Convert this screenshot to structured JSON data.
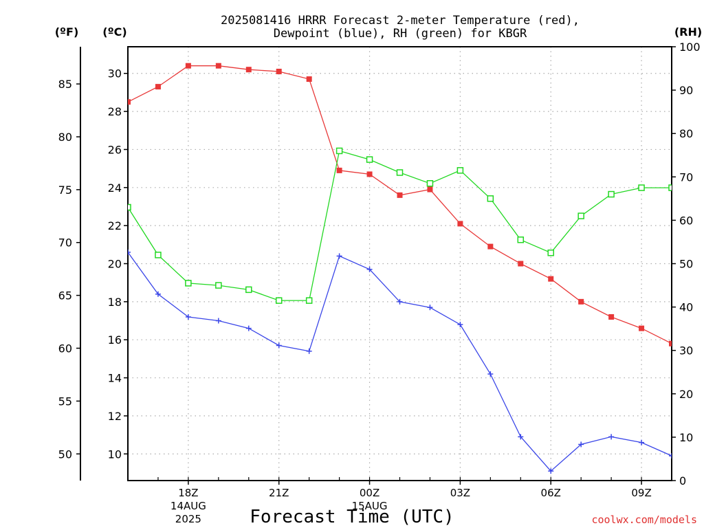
{
  "chart_data": {
    "type": "line",
    "title_line1": "2025081416 HRRR Forecast 2-meter Temperature (red),",
    "title_line2": "Dewpoint (blue), RH (green) for KBGR",
    "left_unit_f": "(ºF)",
    "left_unit_c": "(ºC)",
    "right_unit": "(RH)",
    "xlabel": "Forecast Time (UTC)",
    "credit": "coolwx.com/models",
    "x_hours": [
      16,
      17,
      18,
      19,
      20,
      21,
      22,
      23,
      24,
      25,
      26,
      27,
      28,
      29,
      30,
      31,
      32,
      33,
      34
    ],
    "x_ticks": [
      {
        "hour": 18,
        "label": "18Z",
        "sub1": "14AUG",
        "sub2": "2025"
      },
      {
        "hour": 21,
        "label": "21Z",
        "sub1": "",
        "sub2": ""
      },
      {
        "hour": 24,
        "label": "00Z",
        "sub1": "15AUG",
        "sub2": ""
      },
      {
        "hour": 27,
        "label": "03Z",
        "sub1": "",
        "sub2": ""
      },
      {
        "hour": 30,
        "label": "06Z",
        "sub1": "",
        "sub2": ""
      },
      {
        "hour": 33,
        "label": "09Z",
        "sub1": "",
        "sub2": ""
      }
    ],
    "celsius_ticks": [
      10,
      12,
      14,
      16,
      18,
      20,
      22,
      24,
      26,
      28,
      30
    ],
    "fahrenheit_ticks": [
      50,
      55,
      60,
      65,
      70,
      75,
      80,
      85
    ],
    "rh_ticks": [
      0,
      10,
      20,
      30,
      40,
      50,
      60,
      70,
      80,
      90,
      100
    ],
    "ylim_celsius": [
      8.6,
      31.4
    ],
    "ylim_rh": [
      0,
      100
    ],
    "series": [
      {
        "name": "Temperature",
        "unit": "C",
        "color": "#e83838",
        "marker": "filled-square",
        "values": [
          28.5,
          29.3,
          30.4,
          30.4,
          30.2,
          30.1,
          29.7,
          24.9,
          24.7,
          23.6,
          23.9,
          22.1,
          20.9,
          20.0,
          19.2,
          18.0,
          17.2,
          16.6,
          15.8
        ]
      },
      {
        "name": "Dewpoint",
        "unit": "C",
        "color": "#3a46e8",
        "marker": "plus",
        "values": [
          20.6,
          18.4,
          17.2,
          17.0,
          16.6,
          15.7,
          15.4,
          20.4,
          19.7,
          18.0,
          17.7,
          16.8,
          14.2,
          10.9,
          9.1,
          10.5,
          10.9,
          10.6,
          9.9
        ]
      },
      {
        "name": "RH",
        "unit": "%",
        "color": "#22d822",
        "marker": "open-square",
        "values": [
          63,
          52,
          45.5,
          45,
          44,
          41.5,
          41.5,
          76,
          74,
          71,
          68.5,
          71.5,
          65,
          55.5,
          52.5,
          61,
          66,
          67.5,
          67.5
        ]
      }
    ]
  }
}
